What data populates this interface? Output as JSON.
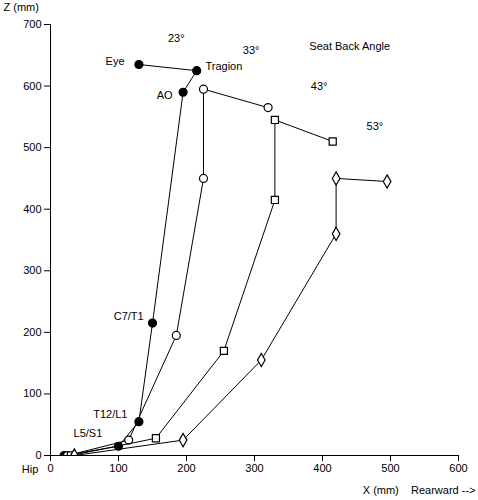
{
  "chart_data": {
    "type": "line",
    "xlabel": "X (mm)    Rearward -->",
    "ylabel": "Z (mm)",
    "xlim": [
      0,
      600
    ],
    "ylim": [
      0,
      700
    ],
    "xticks": [
      0,
      100,
      200,
      300,
      400,
      500,
      600
    ],
    "yticks": [
      0,
      100,
      200,
      300,
      400,
      500,
      600,
      700
    ],
    "grid": false,
    "series": [
      {
        "marker": "filled-circle",
        "x": [
          20,
          100,
          130,
          150,
          195,
          215,
          130
        ],
        "values": [
          0,
          15,
          55,
          215,
          590,
          625,
          635
        ]
      },
      {
        "marker": "circle",
        "x": [
          25,
          115,
          185,
          225,
          225,
          320
        ],
        "values": [
          0,
          25,
          195,
          450,
          595,
          565
        ]
      },
      {
        "marker": "square",
        "x": [
          30,
          155,
          255,
          330,
          330,
          415
        ],
        "values": [
          0,
          28,
          170,
          415,
          545,
          510
        ]
      },
      {
        "marker": "diamond",
        "x": [
          35,
          195,
          310,
          420,
          420,
          495
        ],
        "values": [
          0,
          25,
          155,
          360,
          450,
          445
        ]
      }
    ],
    "annotations": [
      {
        "text": "Eye",
        "x": 95,
        "y": 640
      },
      {
        "text": "Tragion",
        "x": 255,
        "y": 632
      },
      {
        "text": "AO",
        "x": 168,
        "y": 585
      },
      {
        "text": "C7/T1",
        "x": 115,
        "y": 225
      },
      {
        "text": "T12/L1",
        "x": 88,
        "y": 66
      },
      {
        "text": "L5/S1",
        "x": 55,
        "y": 35
      },
      {
        "text": "Hip",
        "x": -30,
        "y": -22
      },
      {
        "text": "23°",
        "x": 185,
        "y": 678
      },
      {
        "text": "33°",
        "x": 295,
        "y": 658
      },
      {
        "text": "43°",
        "x": 395,
        "y": 600
      },
      {
        "text": "53°",
        "x": 477,
        "y": 535
      },
      {
        "text": "Seat Back Angle",
        "x": 440,
        "y": 665
      }
    ]
  }
}
